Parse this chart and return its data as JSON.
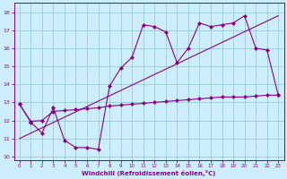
{
  "xlabel": "Windchill (Refroidissement éolien,°C)",
  "xlim": [
    -0.5,
    23.5
  ],
  "ylim": [
    9.8,
    18.5
  ],
  "xticks": [
    0,
    1,
    2,
    3,
    4,
    5,
    6,
    7,
    8,
    9,
    10,
    11,
    12,
    13,
    14,
    15,
    16,
    17,
    18,
    19,
    20,
    21,
    22,
    23
  ],
  "yticks": [
    10,
    11,
    12,
    13,
    14,
    15,
    16,
    17,
    18
  ],
  "bg_color": "#cceeff",
  "line_color": "#880088",
  "grid_color": "#99cccc",
  "line1_x": [
    0,
    1,
    2,
    3,
    4,
    5,
    6,
    7,
    8,
    9,
    10,
    11,
    12,
    13,
    14,
    15,
    16,
    17,
    18,
    19,
    20,
    21,
    22,
    23
  ],
  "line1_y": [
    12.9,
    11.9,
    11.3,
    12.7,
    10.9,
    10.5,
    10.5,
    10.4,
    13.9,
    14.9,
    15.5,
    17.3,
    17.2,
    16.9,
    15.2,
    16.0,
    17.4,
    17.2,
    17.3,
    17.4,
    17.8,
    16.0,
    15.9,
    13.4
  ],
  "line2_x": [
    0,
    1,
    2,
    3,
    4,
    5,
    6,
    7,
    8,
    9,
    10,
    11,
    12,
    13,
    14,
    15,
    16,
    17,
    18,
    19,
    20,
    21,
    22,
    23
  ],
  "line2_y": [
    12.9,
    11.95,
    12.0,
    12.5,
    12.55,
    12.6,
    12.65,
    12.7,
    12.8,
    12.85,
    12.9,
    12.95,
    13.0,
    13.05,
    13.1,
    13.15,
    13.2,
    13.25,
    13.3,
    13.3,
    13.3,
    13.35,
    13.4,
    13.4
  ],
  "trend_x": [
    0,
    23
  ],
  "trend_y": [
    11.0,
    17.8
  ]
}
